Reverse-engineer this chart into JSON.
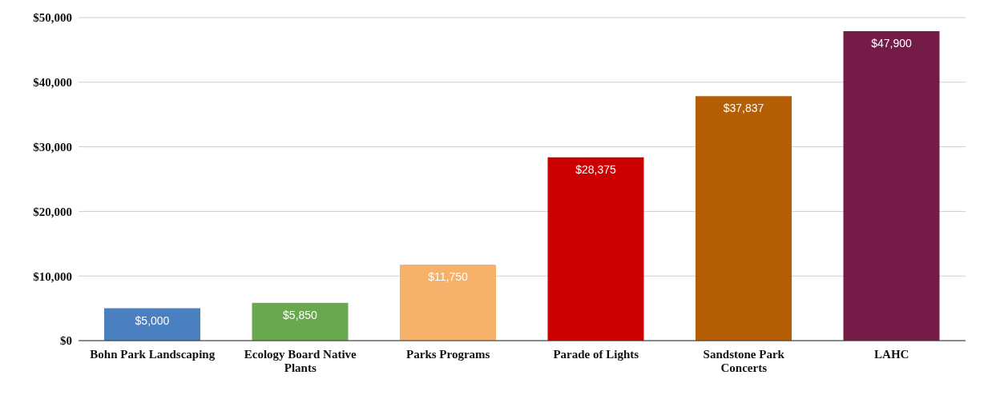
{
  "chart_data": {
    "type": "bar",
    "categories": [
      "Bohn Park Landscaping",
      "Ecology Board Native Plants",
      "Parks Programs",
      "Parade of Lights",
      "Sandstone Park Concerts",
      "LAHC"
    ],
    "values": [
      5000,
      5850,
      11750,
      28375,
      37837,
      47900
    ],
    "colors": [
      "#4a7fc1",
      "#6aa84f",
      "#f6b26b",
      "#cc0000",
      "#b45f06",
      "#741b47"
    ],
    "value_labels": [
      "$5,000",
      "$5,850",
      "$11,750",
      "$28,375",
      "$37,837",
      "$47,900"
    ],
    "ylim": [
      0,
      50000
    ],
    "yticks": [
      {
        "value": 0,
        "label": "$0"
      },
      {
        "value": 10000,
        "label": "$10,000"
      },
      {
        "value": 20000,
        "label": "$20,000"
      },
      {
        "value": 30000,
        "label": "$30,000"
      },
      {
        "value": 40000,
        "label": "$40,000"
      },
      {
        "value": 50000,
        "label": "$50,000"
      }
    ],
    "grid": "y"
  }
}
